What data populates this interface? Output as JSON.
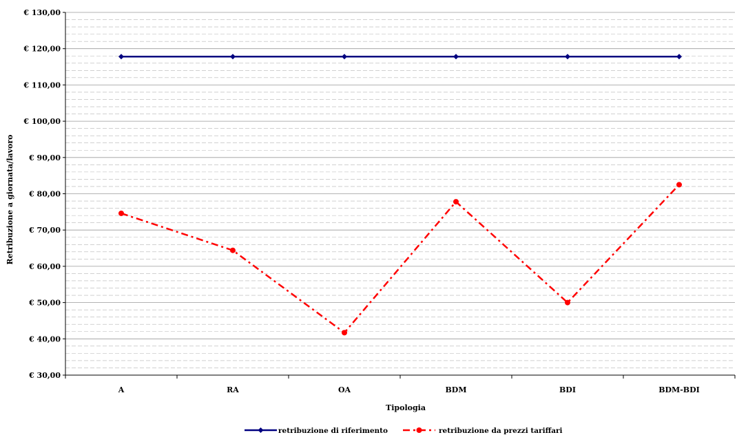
{
  "chart_data": {
    "type": "line",
    "xlabel": "Tipologia",
    "ylabel": "Retribuzione a giornata/lavoro",
    "categories": [
      "A",
      "RA",
      "OA",
      "BDM",
      "BDI",
      "BDM-BDI"
    ],
    "ylim": [
      30,
      130
    ],
    "y_major_step": 10,
    "y_minor_step": 2,
    "y_tick_labels": [
      "€ 30,00",
      "€ 40,00",
      "€ 50,00",
      "€ 60,00",
      "€ 70,00",
      "€ 80,00",
      "€ 90,00",
      "€ 100,00",
      "€ 110,00",
      "€ 120,00",
      "€ 130,00"
    ],
    "grid": true,
    "legend_position": "bottom",
    "series": [
      {
        "name": "retribuzione di riferimento",
        "values": [
          117.8,
          117.8,
          117.8,
          117.8,
          117.8,
          117.8
        ],
        "color": "#000080",
        "line_style": "solid",
        "marker": "diamond"
      },
      {
        "name": "retribuzione da prezzi tariffari",
        "values": [
          74.6,
          64.4,
          41.7,
          77.8,
          50.0,
          82.5
        ],
        "color": "#ff0000",
        "line_style": "dash-dot",
        "marker": "circle"
      }
    ]
  }
}
